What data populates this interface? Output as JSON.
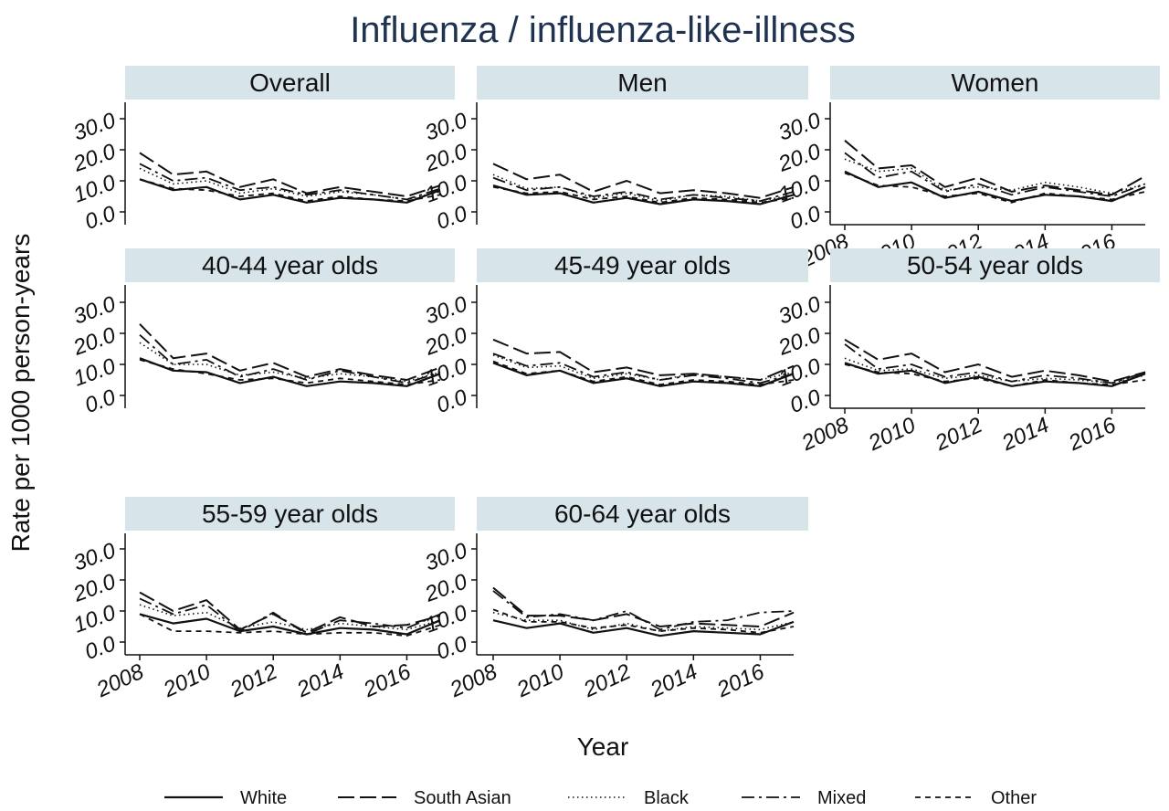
{
  "chart_data": {
    "type": "line",
    "title": "Influenza / influenza-like-illness",
    "xlabel": "Year",
    "ylabel": "Rate per 1000 person-years",
    "x": [
      2008,
      2009,
      2010,
      2011,
      2012,
      2013,
      2014,
      2015,
      2016,
      2017
    ],
    "x_ticks": [
      "2008",
      "2010",
      "2012",
      "2014",
      "2016"
    ],
    "y_ticks": [
      "0.0",
      "10.0",
      "20.0",
      "30.0"
    ],
    "ylim": [
      0,
      30
    ],
    "legend": {
      "placement": "bottom",
      "entries": [
        {
          "name": "White",
          "style": "solid"
        },
        {
          "name": "South Asian",
          "style": "longdash"
        },
        {
          "name": "Black",
          "style": "dotted"
        },
        {
          "name": "Mixed",
          "style": "dashdot"
        },
        {
          "name": "Other",
          "style": "shortdash"
        }
      ]
    },
    "panels": [
      {
        "title": "Overall",
        "series": [
          {
            "name": "White",
            "values": [
              10.5,
              7.0,
              8.0,
              4.0,
              5.5,
              3.0,
              4.5,
              4.0,
              3.0,
              7.0
            ]
          },
          {
            "name": "South Asian",
            "values": [
              19.0,
              12.0,
              13.0,
              8.0,
              10.5,
              6.0,
              8.0,
              6.5,
              5.0,
              8.5
            ]
          },
          {
            "name": "Black",
            "values": [
              14.0,
              9.0,
              10.0,
              6.0,
              7.5,
              5.0,
              6.5,
              5.5,
              4.0,
              6.5
            ]
          },
          {
            "name": "Mixed",
            "values": [
              15.5,
              10.0,
              11.0,
              7.0,
              8.0,
              5.5,
              7.0,
              5.5,
              4.0,
              7.5
            ]
          },
          {
            "name": "Other",
            "values": [
              10.5,
              7.5,
              7.0,
              5.0,
              6.0,
              3.5,
              5.0,
              4.0,
              3.5,
              5.5
            ]
          }
        ]
      },
      {
        "title": "Men",
        "series": [
          {
            "name": "White",
            "values": [
              8.5,
              5.5,
              6.0,
              3.0,
              4.5,
              2.5,
              4.0,
              3.5,
              2.5,
              5.5
            ]
          },
          {
            "name": "South Asian",
            "values": [
              15.5,
              10.5,
              12.0,
              6.5,
              10.0,
              6.0,
              7.0,
              6.0,
              4.5,
              8.0
            ]
          },
          {
            "name": "Black",
            "values": [
              12.0,
              7.5,
              8.0,
              4.5,
              6.0,
              3.5,
              5.5,
              5.0,
              3.5,
              5.5
            ]
          },
          {
            "name": "Mixed",
            "values": [
              11.0,
              7.0,
              8.0,
              5.0,
              6.5,
              4.0,
              5.5,
              4.5,
              3.5,
              6.5
            ]
          },
          {
            "name": "Other",
            "values": [
              8.0,
              6.0,
              6.5,
              4.0,
              5.0,
              3.0,
              4.5,
              4.0,
              3.0,
              4.5
            ]
          }
        ]
      },
      {
        "title": "Women",
        "series": [
          {
            "name": "White",
            "values": [
              13.0,
              8.0,
              9.5,
              4.5,
              6.5,
              3.5,
              5.5,
              5.0,
              3.5,
              8.0
            ]
          },
          {
            "name": "South Asian",
            "values": [
              23.0,
              14.0,
              15.0,
              8.0,
              11.0,
              6.5,
              8.5,
              7.0,
              5.5,
              11.5
            ]
          },
          {
            "name": "Black",
            "values": [
              17.0,
              13.0,
              14.0,
              7.0,
              8.0,
              7.0,
              9.5,
              8.0,
              6.0,
              9.0
            ]
          },
          {
            "name": "Mixed",
            "values": [
              19.0,
              11.0,
              13.0,
              6.5,
              9.0,
              5.5,
              8.0,
              6.5,
              5.0,
              9.0
            ]
          },
          {
            "name": "Other",
            "values": [
              12.5,
              8.5,
              8.0,
              5.0,
              6.0,
              3.0,
              6.0,
              5.0,
              4.0,
              6.5
            ]
          }
        ]
      },
      {
        "title": "40-44 year olds",
        "series": [
          {
            "name": "White",
            "values": [
              12.0,
              8.0,
              7.5,
              4.0,
              6.0,
              3.0,
              4.5,
              4.0,
              3.0,
              7.0
            ]
          },
          {
            "name": "South Asian",
            "values": [
              23.0,
              12.0,
              13.5,
              8.0,
              10.5,
              6.0,
              8.5,
              6.5,
              5.0,
              9.0
            ]
          },
          {
            "name": "Black",
            "values": [
              17.0,
              10.0,
              10.0,
              6.5,
              7.5,
              5.5,
              7.0,
              6.0,
              4.5,
              7.5
            ]
          },
          {
            "name": "Mixed",
            "values": [
              19.5,
              10.0,
              11.5,
              6.0,
              8.5,
              5.0,
              8.0,
              6.0,
              4.0,
              7.5
            ]
          },
          {
            "name": "Other",
            "values": [
              11.5,
              8.5,
              7.0,
              5.0,
              5.5,
              4.0,
              5.5,
              4.5,
              3.5,
              5.0
            ]
          }
        ]
      },
      {
        "title": "45-49 year olds",
        "series": [
          {
            "name": "White",
            "values": [
              10.5,
              6.5,
              8.0,
              4.0,
              5.5,
              3.0,
              4.5,
              4.0,
              3.0,
              7.0
            ]
          },
          {
            "name": "South Asian",
            "values": [
              18.0,
              13.5,
              14.0,
              7.5,
              9.0,
              6.5,
              7.0,
              6.0,
              5.0,
              9.5
            ]
          },
          {
            "name": "Black",
            "values": [
              13.0,
              9.0,
              9.5,
              5.5,
              7.0,
              5.0,
              7.0,
              6.0,
              5.0,
              7.5
            ]
          },
          {
            "name": "Mixed",
            "values": [
              13.5,
              9.5,
              10.5,
              6.0,
              7.5,
              5.0,
              6.5,
              5.5,
              4.0,
              7.0
            ]
          },
          {
            "name": "Other",
            "values": [
              11.0,
              7.0,
              8.0,
              4.5,
              6.0,
              3.5,
              5.0,
              4.5,
              3.5,
              5.0
            ]
          }
        ]
      },
      {
        "title": "50-54 year olds",
        "series": [
          {
            "name": "White",
            "values": [
              10.5,
              7.0,
              8.0,
              4.0,
              6.0,
              3.0,
              4.5,
              4.0,
              3.0,
              7.0
            ]
          },
          {
            "name": "South Asian",
            "values": [
              18.0,
              11.5,
              13.5,
              7.5,
              10.0,
              6.0,
              8.0,
              6.5,
              4.5,
              7.5
            ]
          },
          {
            "name": "Black",
            "values": [
              12.0,
              8.0,
              8.5,
              5.5,
              6.5,
              4.5,
              5.5,
              5.0,
              4.0,
              6.5
            ]
          },
          {
            "name": "Mixed",
            "values": [
              16.5,
              8.5,
              10.0,
              6.0,
              7.5,
              4.5,
              6.5,
              5.5,
              4.0,
              7.5
            ]
          },
          {
            "name": "Other",
            "values": [
              10.0,
              7.5,
              7.0,
              4.5,
              5.5,
              3.0,
              5.0,
              4.0,
              3.5,
              5.0
            ]
          }
        ]
      },
      {
        "title": "55-59 year olds",
        "series": [
          {
            "name": "White",
            "values": [
              9.0,
              6.0,
              7.5,
              3.5,
              5.0,
              2.5,
              4.5,
              4.0,
              2.5,
              7.0
            ]
          },
          {
            "name": "South Asian",
            "values": [
              16.0,
              10.0,
              13.5,
              4.0,
              9.0,
              3.0,
              8.0,
              5.0,
              5.5,
              8.5
            ]
          },
          {
            "name": "Black",
            "values": [
              12.0,
              8.5,
              9.5,
              4.5,
              6.5,
              4.0,
              6.0,
              5.0,
              4.0,
              7.0
            ]
          },
          {
            "name": "Mixed",
            "values": [
              14.0,
              9.0,
              12.0,
              3.5,
              9.5,
              2.5,
              7.0,
              6.0,
              4.5,
              9.0
            ]
          },
          {
            "name": "Other",
            "values": [
              9.0,
              3.5,
              3.5,
              3.0,
              3.5,
              2.5,
              3.0,
              3.0,
              2.0,
              5.5
            ]
          }
        ]
      },
      {
        "title": "60-64 year olds",
        "series": [
          {
            "name": "White",
            "values": [
              7.0,
              4.5,
              6.0,
              3.0,
              4.5,
              2.0,
              3.5,
              3.0,
              2.5,
              6.5
            ]
          },
          {
            "name": "South Asian",
            "values": [
              17.5,
              8.5,
              8.5,
              7.0,
              9.0,
              5.0,
              6.0,
              5.5,
              5.0,
              9.5
            ]
          },
          {
            "name": "Black",
            "values": [
              9.5,
              7.0,
              7.0,
              4.0,
              6.0,
              3.5,
              5.0,
              4.5,
              4.0,
              6.5
            ]
          },
          {
            "name": "Mixed",
            "values": [
              16.5,
              8.0,
              9.0,
              7.0,
              10.0,
              4.0,
              6.5,
              7.0,
              9.5,
              10.0
            ]
          },
          {
            "name": "Other",
            "values": [
              10.5,
              6.5,
              6.5,
              4.5,
              5.5,
              3.5,
              4.5,
              4.0,
              3.0,
              5.0
            ]
          }
        ]
      }
    ]
  }
}
